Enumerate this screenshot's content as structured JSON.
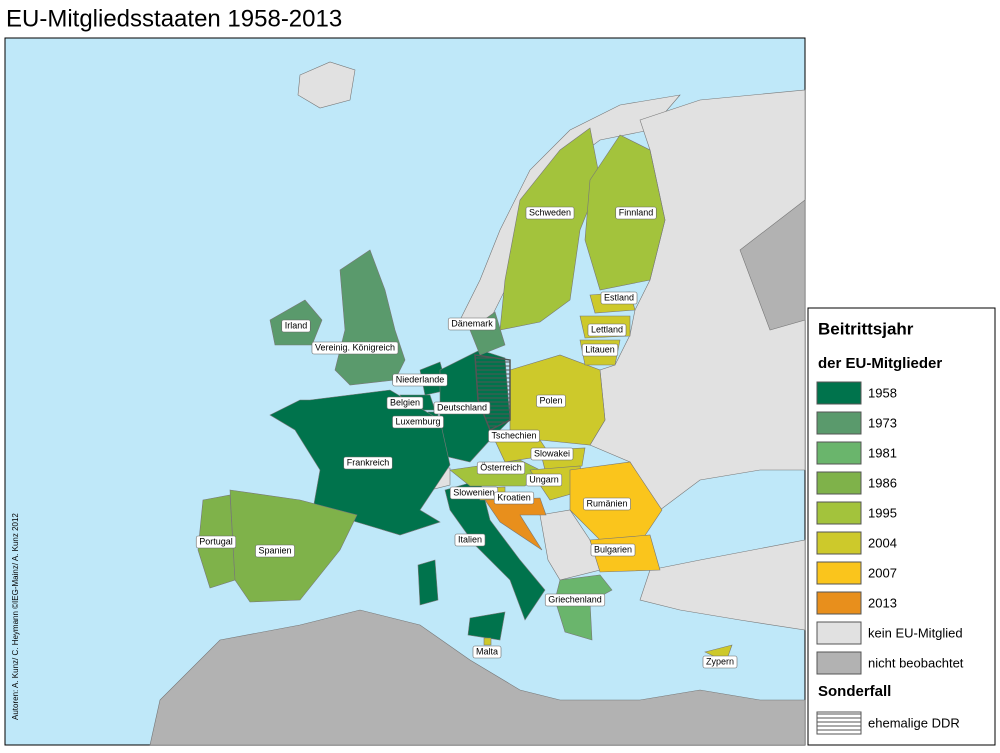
{
  "title": "EU-Mitgliedsstaaten 1958-2013",
  "credit": "Autoren: A. Kunz/ C. Heymann ©IEG-Mainz/ A. Kunz 2012",
  "legend": {
    "title": "Beitrittsjahr",
    "subtitle": "der EU-Mitglieder",
    "items": [
      {
        "label": "1958",
        "color": "#00734c",
        "countries": [
          "Niederlande",
          "Belgien",
          "Deutschland",
          "Luxemburg",
          "Frankreich",
          "Italien"
        ]
      },
      {
        "label": "1973",
        "color": "#5a9a6c",
        "countries": [
          "Irland",
          "Vereinig. Königreich",
          "Dänemark"
        ]
      },
      {
        "label": "1981",
        "color": "#6ab56c",
        "countries": [
          "Griechenland"
        ]
      },
      {
        "label": "1986",
        "color": "#7fb24a",
        "countries": [
          "Portugal",
          "Spanien"
        ]
      },
      {
        "label": "1995",
        "color": "#a3c33c",
        "countries": [
          "Schweden",
          "Finnland",
          "Österreich"
        ]
      },
      {
        "label": "2004",
        "color": "#cdc92b",
        "countries": [
          "Polen",
          "Tschechien",
          "Slowakei",
          "Ungarn",
          "Slowenien",
          "Estland",
          "Lettland",
          "Litauen",
          "Zypern",
          "Malta"
        ]
      },
      {
        "label": "2007",
        "color": "#fac51c",
        "countries": [
          "Rumänien",
          "Bulgarien"
        ]
      },
      {
        "label": "2013",
        "color": "#e88f1c",
        "countries": [
          "Kroatien"
        ]
      }
    ],
    "other": [
      {
        "label": "kein EU-Mitglied",
        "color": "#e1e1e1"
      },
      {
        "label": "nicht beobachtet",
        "color": "#b2b2b2"
      }
    ],
    "special_title": "Sonderfall",
    "special": {
      "label": "ehemalige DDR"
    }
  }
}
